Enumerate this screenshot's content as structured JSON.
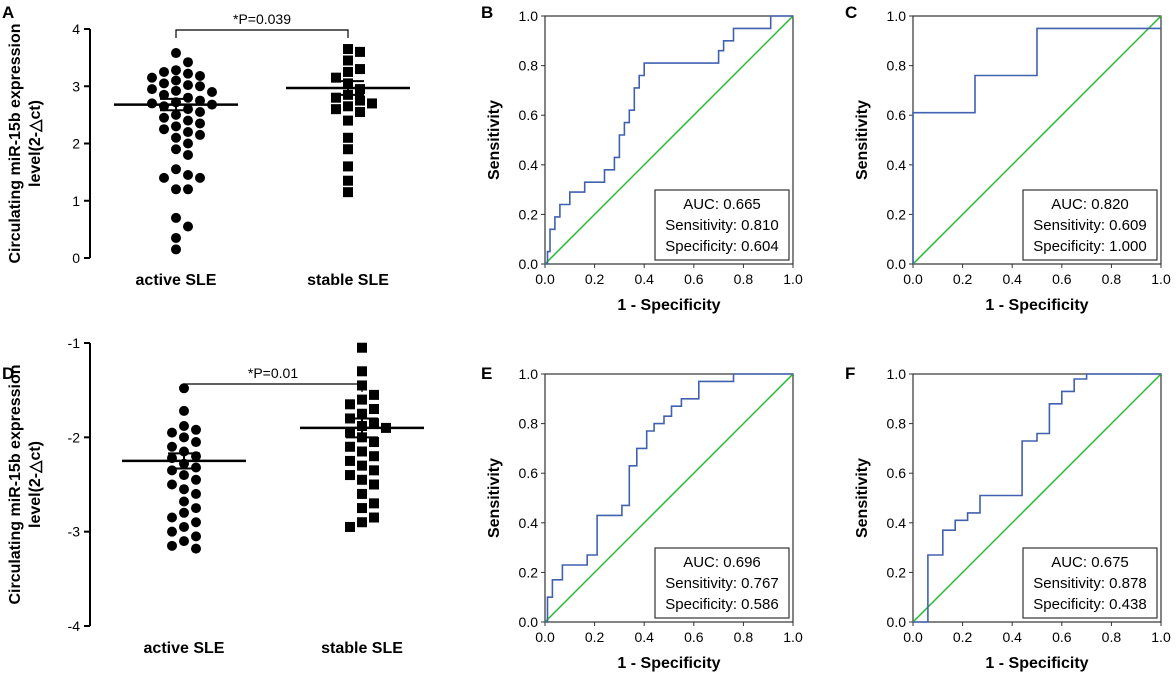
{
  "colors": {
    "roc": "#4060b0",
    "ref": "#22bb33",
    "axis": "#000000",
    "marker": "#000000"
  },
  "chart_data": [
    {
      "panel": "A",
      "type": "scatter",
      "ylabel_line1": "Circulating miR-15b expression",
      "ylabel_line2": "level(2-△ct)",
      "categories": [
        "active SLE",
        "stable SLE"
      ],
      "ylim": [
        0,
        4
      ],
      "yticks": [
        "0",
        "1",
        "2",
        "3",
        "4"
      ],
      "pvalue": "*P=0.039",
      "series": [
        {
          "name": "active SLE",
          "marker": "circle",
          "mean": 2.68,
          "sem": 0.1,
          "values": [
            3.58,
            3.42,
            3.28,
            3.25,
            3.22,
            3.18,
            3.15,
            3.1,
            3.05,
            3.02,
            3.0,
            2.95,
            2.92,
            2.9,
            2.85,
            2.8,
            2.75,
            2.72,
            2.7,
            2.68,
            2.65,
            2.6,
            2.55,
            2.5,
            2.45,
            2.4,
            2.35,
            2.3,
            2.25,
            2.2,
            2.15,
            2.1,
            2.0,
            1.9,
            1.8,
            1.55,
            1.45,
            1.4,
            1.4,
            1.2,
            1.2,
            0.7,
            0.55,
            0.35,
            0.15
          ]
        },
        {
          "name": "stable SLE",
          "marker": "square",
          "mean": 2.97,
          "sem": 0.12,
          "values": [
            3.65,
            3.6,
            3.45,
            3.3,
            3.25,
            3.15,
            3.05,
            2.95,
            2.85,
            2.8,
            2.75,
            2.7,
            2.65,
            2.6,
            2.55,
            2.4,
            2.1,
            1.9,
            1.6,
            1.35,
            1.15
          ]
        }
      ]
    },
    {
      "panel": "B",
      "type": "line",
      "xlabel": "1 - Specificity",
      "ylabel": "Sensitivity",
      "xlim": [
        0,
        1
      ],
      "ylim": [
        0,
        1
      ],
      "xticks": [
        "0.0",
        "0.2",
        "0.4",
        "0.6",
        "0.8",
        "1.0"
      ],
      "yticks": [
        "0.0",
        "0.2",
        "0.4",
        "0.6",
        "0.8",
        "1.0"
      ],
      "auc": "AUC: 0.665",
      "sensitivity": "Sensitivity: 0.810",
      "specificity": "Specificity: 0.604",
      "roc_x": [
        0,
        0.01,
        0.01,
        0.02,
        0.02,
        0.04,
        0.04,
        0.06,
        0.06,
        0.1,
        0.1,
        0.16,
        0.16,
        0.2,
        0.2,
        0.24,
        0.24,
        0.28,
        0.28,
        0.3,
        0.3,
        0.32,
        0.32,
        0.34,
        0.34,
        0.36,
        0.36,
        0.38,
        0.38,
        0.4,
        0.4,
        0.7,
        0.7,
        0.72,
        0.72,
        0.76,
        0.76,
        0.8,
        0.8,
        0.91,
        0.91,
        1.0
      ],
      "roc_y": [
        0,
        0,
        0.05,
        0.05,
        0.14,
        0.14,
        0.19,
        0.19,
        0.24,
        0.24,
        0.29,
        0.29,
        0.33,
        0.33,
        0.33,
        0.33,
        0.38,
        0.38,
        0.43,
        0.43,
        0.52,
        0.52,
        0.57,
        0.57,
        0.62,
        0.62,
        0.71,
        0.71,
        0.76,
        0.76,
        0.81,
        0.81,
        0.86,
        0.86,
        0.9,
        0.9,
        0.95,
        0.95,
        0.95,
        0.95,
        1.0,
        1.0
      ]
    },
    {
      "panel": "C",
      "type": "line",
      "xlabel": "1 - Specificity",
      "ylabel": "Sensitivity",
      "xlim": [
        0,
        1
      ],
      "ylim": [
        0,
        1
      ],
      "xticks": [
        "0.0",
        "0.2",
        "0.4",
        "0.6",
        "0.8",
        "1.0"
      ],
      "yticks": [
        "0.0",
        "0.2",
        "0.4",
        "0.6",
        "0.8",
        "1.0"
      ],
      "auc": "AUC: 0.820",
      "sensitivity": "Sensitivity: 0.609",
      "specificity": "Specificity: 1.000",
      "roc_x": [
        0,
        0,
        0.25,
        0.25,
        0.5,
        0.5,
        1.0
      ],
      "roc_y": [
        0,
        0.61,
        0.61,
        0.76,
        0.76,
        0.95,
        0.95
      ]
    },
    {
      "panel": "D",
      "type": "scatter",
      "ylabel_line1": "Circulating miR-15b expression",
      "ylabel_line2": "level(2-△ct)",
      "categories": [
        "active SLE",
        "stable SLE"
      ],
      "ylim": [
        -4,
        -1
      ],
      "yticks": [
        "-4",
        "-3",
        "-2",
        "-1"
      ],
      "pvalue": "*P=0.01",
      "series": [
        {
          "name": "active SLE",
          "marker": "circle",
          "mean": -2.25,
          "sem": 0.08,
          "values": [
            -1.48,
            -1.72,
            -1.88,
            -1.92,
            -1.95,
            -2.0,
            -2.05,
            -2.1,
            -2.15,
            -2.2,
            -2.22,
            -2.28,
            -2.32,
            -2.35,
            -2.4,
            -2.45,
            -2.5,
            -2.55,
            -2.6,
            -2.68,
            -2.75,
            -2.8,
            -2.85,
            -2.9,
            -2.95,
            -3.0,
            -3.05,
            -3.1,
            -3.15,
            -3.18
          ]
        },
        {
          "name": "stable SLE",
          "marker": "square",
          "mean": -1.9,
          "sem": 0.1,
          "values": [
            -1.05,
            -1.3,
            -1.45,
            -1.55,
            -1.6,
            -1.65,
            -1.7,
            -1.75,
            -1.8,
            -1.85,
            -1.88,
            -1.9,
            -1.95,
            -2.0,
            -2.05,
            -2.1,
            -2.15,
            -2.2,
            -2.25,
            -2.3,
            -2.35,
            -2.4,
            -2.45,
            -2.5,
            -2.6,
            -2.7,
            -2.75,
            -2.85,
            -2.9,
            -2.95
          ]
        }
      ]
    },
    {
      "panel": "E",
      "type": "line",
      "xlabel": "1 - Specificity",
      "ylabel": "Sensitivity",
      "xlim": [
        0,
        1
      ],
      "ylim": [
        0,
        1
      ],
      "xticks": [
        "0.0",
        "0.2",
        "0.4",
        "0.6",
        "0.8",
        "1.0"
      ],
      "yticks": [
        "0.0",
        "0.2",
        "0.4",
        "0.6",
        "0.8",
        "1.0"
      ],
      "auc": "AUC: 0.696",
      "sensitivity": "Sensitivity: 0.767",
      "specificity": "Specificity: 0.586",
      "roc_x": [
        0,
        0.01,
        0.01,
        0.03,
        0.03,
        0.07,
        0.07,
        0.17,
        0.17,
        0.21,
        0.21,
        0.31,
        0.31,
        0.34,
        0.34,
        0.37,
        0.37,
        0.41,
        0.41,
        0.44,
        0.44,
        0.48,
        0.48,
        0.51,
        0.51,
        0.55,
        0.55,
        0.62,
        0.62,
        0.76,
        0.76,
        1.0
      ],
      "roc_y": [
        0,
        0,
        0.1,
        0.1,
        0.17,
        0.17,
        0.23,
        0.23,
        0.27,
        0.27,
        0.43,
        0.43,
        0.47,
        0.47,
        0.63,
        0.63,
        0.7,
        0.7,
        0.77,
        0.77,
        0.8,
        0.8,
        0.83,
        0.83,
        0.87,
        0.87,
        0.9,
        0.9,
        0.97,
        0.97,
        1.0,
        1.0
      ]
    },
    {
      "panel": "F",
      "type": "line",
      "xlabel": "1 - Specificity",
      "ylabel": "Sensitivity",
      "xlim": [
        0,
        1
      ],
      "ylim": [
        0,
        1
      ],
      "xticks": [
        "0.0",
        "0.2",
        "0.4",
        "0.6",
        "0.8",
        "1.0"
      ],
      "yticks": [
        "0.0",
        "0.2",
        "0.4",
        "0.6",
        "0.8",
        "1.0"
      ],
      "auc": "AUC: 0.675",
      "sensitivity": "Sensitivity: 0.878",
      "specificity": "Specificity: 0.438",
      "roc_x": [
        0,
        0.06,
        0.06,
        0.12,
        0.12,
        0.17,
        0.17,
        0.22,
        0.22,
        0.27,
        0.27,
        0.32,
        0.32,
        0.44,
        0.44,
        0.5,
        0.5,
        0.55,
        0.55,
        0.6,
        0.6,
        0.65,
        0.65,
        0.7,
        0.7,
        1.0
      ],
      "roc_y": [
        0,
        0,
        0.27,
        0.27,
        0.37,
        0.37,
        0.41,
        0.41,
        0.44,
        0.44,
        0.51,
        0.51,
        0.51,
        0.51,
        0.73,
        0.73,
        0.76,
        0.76,
        0.88,
        0.88,
        0.93,
        0.93,
        0.98,
        0.98,
        1.0,
        1.0
      ]
    }
  ]
}
